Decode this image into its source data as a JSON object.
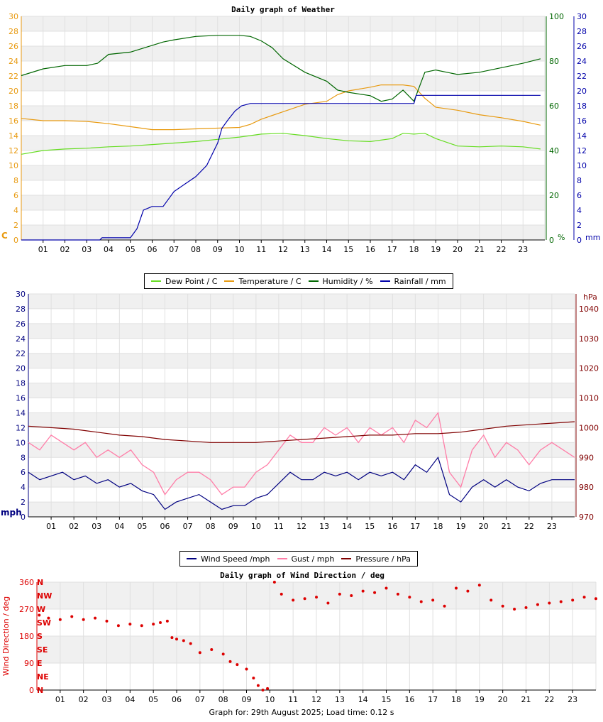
{
  "footer": "Graph for: 29th August 2025; Load time: 0.12 s",
  "colors": {
    "dew": "#66dd22",
    "temp": "#e89a10",
    "hum": "#006600",
    "rain": "#0000aa",
    "wind": "#000080",
    "gust": "#ff7ea8",
    "pres": "#800000",
    "dir": "#dd0000"
  },
  "chart_data": [
    {
      "type": "line",
      "title": "Daily graph of Weather",
      "x_ticks": [
        "01",
        "02",
        "03",
        "04",
        "05",
        "06",
        "07",
        "08",
        "09",
        "10",
        "11",
        "12",
        "13",
        "14",
        "15",
        "16",
        "17",
        "18",
        "19",
        "20",
        "21",
        "22",
        "23"
      ],
      "xlim": [
        0,
        24
      ],
      "y_left": {
        "unit": "C",
        "ylim": [
          0,
          30
        ],
        "ticks": [
          "0",
          "2",
          "4",
          "6",
          "8",
          "10",
          "12",
          "14",
          "16",
          "18",
          "20",
          "22",
          "24",
          "26",
          "28",
          "30"
        ]
      },
      "y_right1": {
        "unit": "%",
        "ylim": [
          0,
          100
        ],
        "ticks": [
          "0",
          "20",
          "40",
          "60",
          "80",
          "100"
        ]
      },
      "y_right2": {
        "unit": "mm",
        "ylim": [
          0,
          30
        ],
        "ticks": [
          "0",
          "2",
          "4",
          "6",
          "8",
          "10",
          "12",
          "14",
          "16",
          "18",
          "20",
          "22",
          "24",
          "26",
          "28",
          "30"
        ]
      },
      "legend": [
        {
          "name": "Dew Point / C",
          "color": "#66dd22"
        },
        {
          "name": "Temperature / C",
          "color": "#e89a10"
        },
        {
          "name": "Humidity / %",
          "color": "#006600"
        },
        {
          "name": "Rainfall / mm",
          "color": "#0000aa"
        }
      ],
      "series": [
        {
          "key": "dew",
          "axis": "left",
          "x": [
            0,
            1,
            2,
            3,
            4,
            5,
            6,
            7,
            8,
            9,
            10,
            11,
            12,
            13,
            14,
            15,
            16,
            17,
            17.5,
            18,
            18.5,
            19,
            20,
            21,
            22,
            23,
            23.8
          ],
          "values": [
            11.5,
            12,
            12.2,
            12.3,
            12.5,
            12.6,
            12.8,
            13,
            13.2,
            13.5,
            13.8,
            14.2,
            14.3,
            14,
            13.6,
            13.3,
            13.2,
            13.6,
            14.3,
            14.2,
            14.3,
            13.6,
            12.6,
            12.5,
            12.6,
            12.5,
            12.2
          ]
        },
        {
          "key": "temp",
          "axis": "left",
          "x": [
            0,
            1,
            2,
            3,
            4,
            5,
            5.5,
            6,
            7,
            8,
            9,
            10,
            10.5,
            11,
            12,
            13,
            14,
            14.5,
            15,
            16,
            16.5,
            17,
            17.5,
            18,
            18.5,
            19,
            20,
            21,
            22,
            23,
            23.8
          ],
          "values": [
            16.3,
            16,
            16,
            15.9,
            15.6,
            15.2,
            15,
            14.8,
            14.8,
            14.9,
            15,
            15.1,
            15.5,
            16.2,
            17.2,
            18.2,
            18.6,
            19.5,
            20,
            20.5,
            20.8,
            20.8,
            20.8,
            20.6,
            19,
            17.8,
            17.4,
            16.8,
            16.4,
            15.9,
            15.4
          ]
        },
        {
          "key": "hum",
          "axis": "right1",
          "x": [
            0,
            1,
            2,
            3,
            3.5,
            4,
            5,
            6,
            6.5,
            7,
            8,
            9,
            10,
            10.5,
            11,
            11.5,
            12,
            13,
            14,
            14.5,
            15,
            16,
            16.5,
            17,
            17.5,
            18,
            18.5,
            19,
            20,
            21,
            22,
            23,
            23.8
          ],
          "values": [
            73.5,
            76.5,
            78,
            78,
            79,
            83,
            84,
            87,
            88.5,
            89.5,
            91,
            91.5,
            91.5,
            91,
            89,
            86,
            81,
            75,
            71,
            67,
            66,
            64.5,
            62,
            63,
            67,
            62,
            75,
            76,
            74,
            75,
            77,
            79,
            81
          ]
        },
        {
          "key": "rain",
          "axis": "right2",
          "x": [
            0,
            3.6,
            3.7,
            5.0,
            5.3,
            5.6,
            6.0,
            6.5,
            7.0,
            7.5,
            8.0,
            8.5,
            9.0,
            9.2,
            9.5,
            9.8,
            10.1,
            10.5,
            11,
            12,
            13,
            14,
            15,
            16,
            17,
            18,
            18.1,
            23.8
          ],
          "values": [
            0,
            0,
            0.3,
            0.3,
            1.5,
            4,
            4.5,
            4.5,
            6.5,
            7.5,
            8.5,
            10,
            13,
            15,
            16.2,
            17.3,
            18,
            18.3,
            18.3,
            18.3,
            18.3,
            18.3,
            18.3,
            18.3,
            18.3,
            18.3,
            19.4,
            19.4
          ]
        }
      ]
    },
    {
      "type": "line",
      "title": "",
      "x_ticks": [
        "01",
        "02",
        "03",
        "04",
        "05",
        "06",
        "07",
        "08",
        "09",
        "10",
        "11",
        "12",
        "13",
        "14",
        "15",
        "16",
        "17",
        "18",
        "19",
        "20",
        "21",
        "22",
        "23"
      ],
      "xlim": [
        0,
        24
      ],
      "y_left": {
        "unit": "mph",
        "ylim": [
          0,
          30
        ],
        "ticks": [
          "0",
          "2",
          "4",
          "6",
          "8",
          "10",
          "12",
          "14",
          "16",
          "18",
          "20",
          "22",
          "24",
          "26",
          "28",
          "30"
        ]
      },
      "y_right": {
        "unit": "hPa",
        "ylim": [
          970,
          1045
        ],
        "ticks": [
          "970",
          "980",
          "990",
          "1000",
          "1010",
          "1020",
          "1030",
          "1040"
        ]
      },
      "legend": [
        {
          "name": "Wind Speed /mph",
          "color": "#000080"
        },
        {
          "name": "Gust / mph",
          "color": "#ff7ea8"
        },
        {
          "name": "Pressure / hPa",
          "color": "#800000"
        }
      ],
      "series": [
        {
          "key": "wind",
          "axis": "left",
          "x": [
            0,
            0.5,
            1,
            1.5,
            2,
            2.5,
            3,
            3.5,
            4,
            4.5,
            5,
            5.5,
            6,
            6.5,
            7,
            7.5,
            8,
            8.5,
            9,
            9.5,
            10,
            10.5,
            11,
            11.5,
            12,
            12.5,
            13,
            13.5,
            14,
            14.5,
            15,
            15.5,
            16,
            16.5,
            17,
            17.5,
            18,
            18.5,
            19,
            19.5,
            20,
            20.5,
            21,
            21.5,
            22,
            22.5,
            23,
            23.5,
            24
          ],
          "values": [
            6,
            5,
            5.5,
            6,
            5,
            5.5,
            4.5,
            5,
            4,
            4.5,
            3.5,
            3,
            1,
            2,
            2.5,
            3,
            2,
            1,
            1.5,
            1.5,
            2.5,
            3,
            4.5,
            6,
            5,
            5,
            6,
            5.5,
            6,
            5,
            6,
            5.5,
            6,
            5,
            7,
            6,
            8,
            3,
            2,
            4,
            5,
            4,
            5,
            4,
            3.5,
            4.5,
            5,
            5,
            5
          ]
        },
        {
          "key": "gust",
          "axis": "left",
          "x": [
            0,
            0.5,
            1,
            1.5,
            2,
            2.5,
            3,
            3.5,
            4,
            4.5,
            5,
            5.5,
            6,
            6.5,
            7,
            7.5,
            8,
            8.5,
            9,
            9.5,
            10,
            10.5,
            11,
            11.5,
            12,
            12.5,
            13,
            13.5,
            14,
            14.5,
            15,
            15.5,
            16,
            16.5,
            17,
            17.5,
            18,
            18.5,
            19,
            19.5,
            20,
            20.5,
            21,
            21.5,
            22,
            22.5,
            23,
            23.5,
            24
          ],
          "values": [
            10,
            9,
            11,
            10,
            9,
            10,
            8,
            9,
            8,
            9,
            7,
            6,
            3,
            5,
            6,
            6,
            5,
            3,
            4,
            4,
            6,
            7,
            9,
            11,
            10,
            10,
            12,
            11,
            12,
            10,
            12,
            11,
            12,
            10,
            13,
            12,
            14,
            6,
            4,
            9,
            11,
            8,
            10,
            9,
            7,
            9,
            10,
            9,
            8
          ]
        },
        {
          "key": "pres",
          "axis": "right",
          "x": [
            0,
            1,
            2,
            3,
            4,
            5,
            6,
            7,
            8,
            9,
            10,
            11,
            12,
            13,
            14,
            15,
            16,
            17,
            18,
            19,
            20,
            21,
            22,
            23,
            24
          ],
          "values": [
            1000.5,
            1000,
            999.5,
            998.5,
            997.5,
            997,
            996,
            995.5,
            995,
            995,
            995,
            995.5,
            996,
            996.5,
            997,
            997.5,
            997.5,
            998,
            998,
            998.5,
            999.5,
            1000.5,
            1001,
            1001.5,
            1002
          ]
        }
      ]
    },
    {
      "type": "scatter",
      "title": "Daily graph of Wind Direction / deg",
      "x_ticks": [
        "01",
        "02",
        "03",
        "04",
        "05",
        "06",
        "07",
        "08",
        "09",
        "10",
        "11",
        "12",
        "13",
        "14",
        "15",
        "16",
        "17",
        "18",
        "19",
        "20",
        "21",
        "22",
        "23"
      ],
      "xlim": [
        0,
        24
      ],
      "ylabel": "Wind Direction / deg",
      "y_left": {
        "ylim": [
          0,
          360
        ],
        "ticks": [
          "0",
          "90",
          "180",
          "270",
          "360"
        ]
      },
      "compass_labels": [
        "N",
        "NE",
        "E",
        "SE",
        "S",
        "SW",
        "W",
        "NW",
        "N"
      ],
      "series": [
        {
          "key": "dir",
          "x": [
            0.1,
            0.5,
            1,
            1.5,
            2,
            2.5,
            3,
            3.5,
            4,
            4.5,
            5,
            5.3,
            5.6,
            5.8,
            6,
            6.3,
            6.6,
            7,
            7.5,
            8,
            8.3,
            8.6,
            9,
            9.3,
            9.5,
            9.7,
            9.9,
            10.2,
            10.5,
            11,
            11.5,
            12,
            12.5,
            13,
            13.5,
            14,
            14.5,
            15,
            15.5,
            16,
            16.5,
            17,
            17.5,
            18,
            18.5,
            19,
            19.5,
            20,
            20.5,
            21,
            21.5,
            22,
            22.5,
            23,
            23.5,
            24
          ],
          "values": [
            250,
            240,
            235,
            245,
            235,
            240,
            230,
            215,
            220,
            215,
            220,
            225,
            230,
            175,
            170,
            165,
            155,
            125,
            135,
            120,
            95,
            85,
            70,
            40,
            15,
            0,
            5,
            360,
            320,
            300,
            305,
            310,
            290,
            320,
            315,
            330,
            325,
            340,
            320,
            310,
            295,
            300,
            280,
            340,
            330,
            350,
            300,
            280,
            270,
            275,
            285,
            290,
            295,
            300,
            310,
            305
          ]
        }
      ]
    }
  ]
}
